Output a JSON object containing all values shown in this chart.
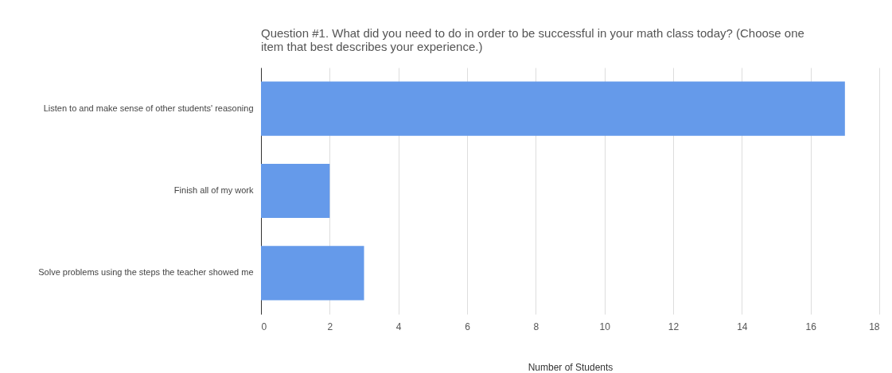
{
  "chart_data": {
    "type": "bar",
    "orientation": "horizontal",
    "title": "Question #1. What did you need to do in order to be successful in your math class today? (Choose one item that best describes your experience.)",
    "xlabel": "Number of Students",
    "categories": [
      "Listen to and make sense of other students' reasoning",
      "Finish all of my work",
      "Solve problems using the steps the teacher showed me"
    ],
    "values": [
      17,
      2,
      3
    ],
    "color": "#659aea",
    "xlim": [
      0,
      18
    ],
    "xticks": [
      0,
      2,
      4,
      6,
      8,
      10,
      12,
      14,
      16,
      18
    ],
    "grid": "x"
  }
}
